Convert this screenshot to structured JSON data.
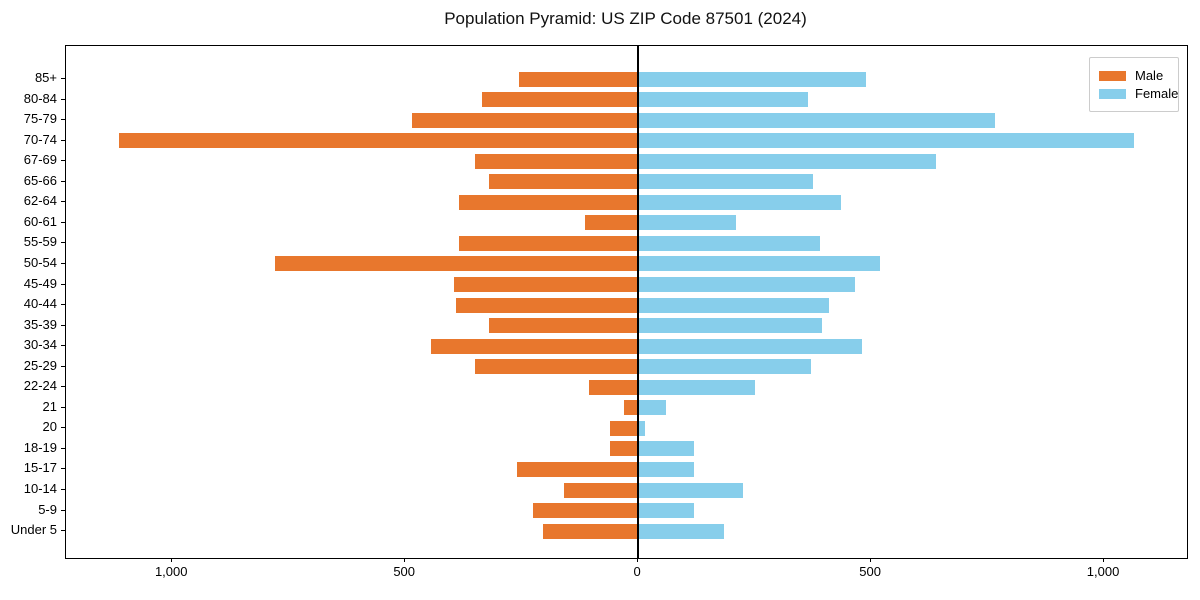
{
  "title": "Population Pyramid: US ZIP Code 87501 (2024)",
  "colors": {
    "male": "#E8772D",
    "female": "#87CEEB",
    "axis": "#000000",
    "legend_border": "#CCCCCC",
    "background": "#FFFFFF"
  },
  "legend": {
    "male_label": "Male",
    "female_label": "Female"
  },
  "chart_data": {
    "type": "bar",
    "subtype": "population-pyramid",
    "orientation": "horizontal",
    "title": "Population Pyramid: US ZIP Code 87501 (2024)",
    "categories": [
      "85+",
      "80-84",
      "75-79",
      "70-74",
      "67-69",
      "65-66",
      "62-64",
      "60-61",
      "55-59",
      "50-54",
      "45-49",
      "40-44",
      "35-39",
      "30-34",
      "25-29",
      "22-24",
      "21",
      "20",
      "18-19",
      "15-17",
      "10-14",
      "5-9",
      "Under 5"
    ],
    "series": [
      {
        "name": "Male",
        "color": "#E8772D",
        "side": "left",
        "values": [
          255,
          335,
          485,
          1115,
          350,
          320,
          385,
          115,
          385,
          780,
          395,
          390,
          320,
          445,
          350,
          105,
          30,
          60,
          60,
          260,
          160,
          225,
          205
        ]
      },
      {
        "name": "Female",
        "color": "#87CEEB",
        "side": "right",
        "values": [
          490,
          365,
          765,
          1065,
          640,
          375,
          435,
          210,
          390,
          520,
          465,
          410,
          395,
          480,
          370,
          250,
          60,
          15,
          120,
          120,
          225,
          120,
          185
        ]
      }
    ],
    "x_tick_values": [
      -1000,
      -500,
      0,
      500,
      1000
    ],
    "x_tick_labels": [
      "1,000",
      "500",
      "0",
      "500",
      "1,000"
    ],
    "xlim": [
      -1228,
      1178
    ],
    "ylabel": "",
    "xlabel": "",
    "grid": false,
    "legend_position": "upper right",
    "zero_axis_line": true
  }
}
